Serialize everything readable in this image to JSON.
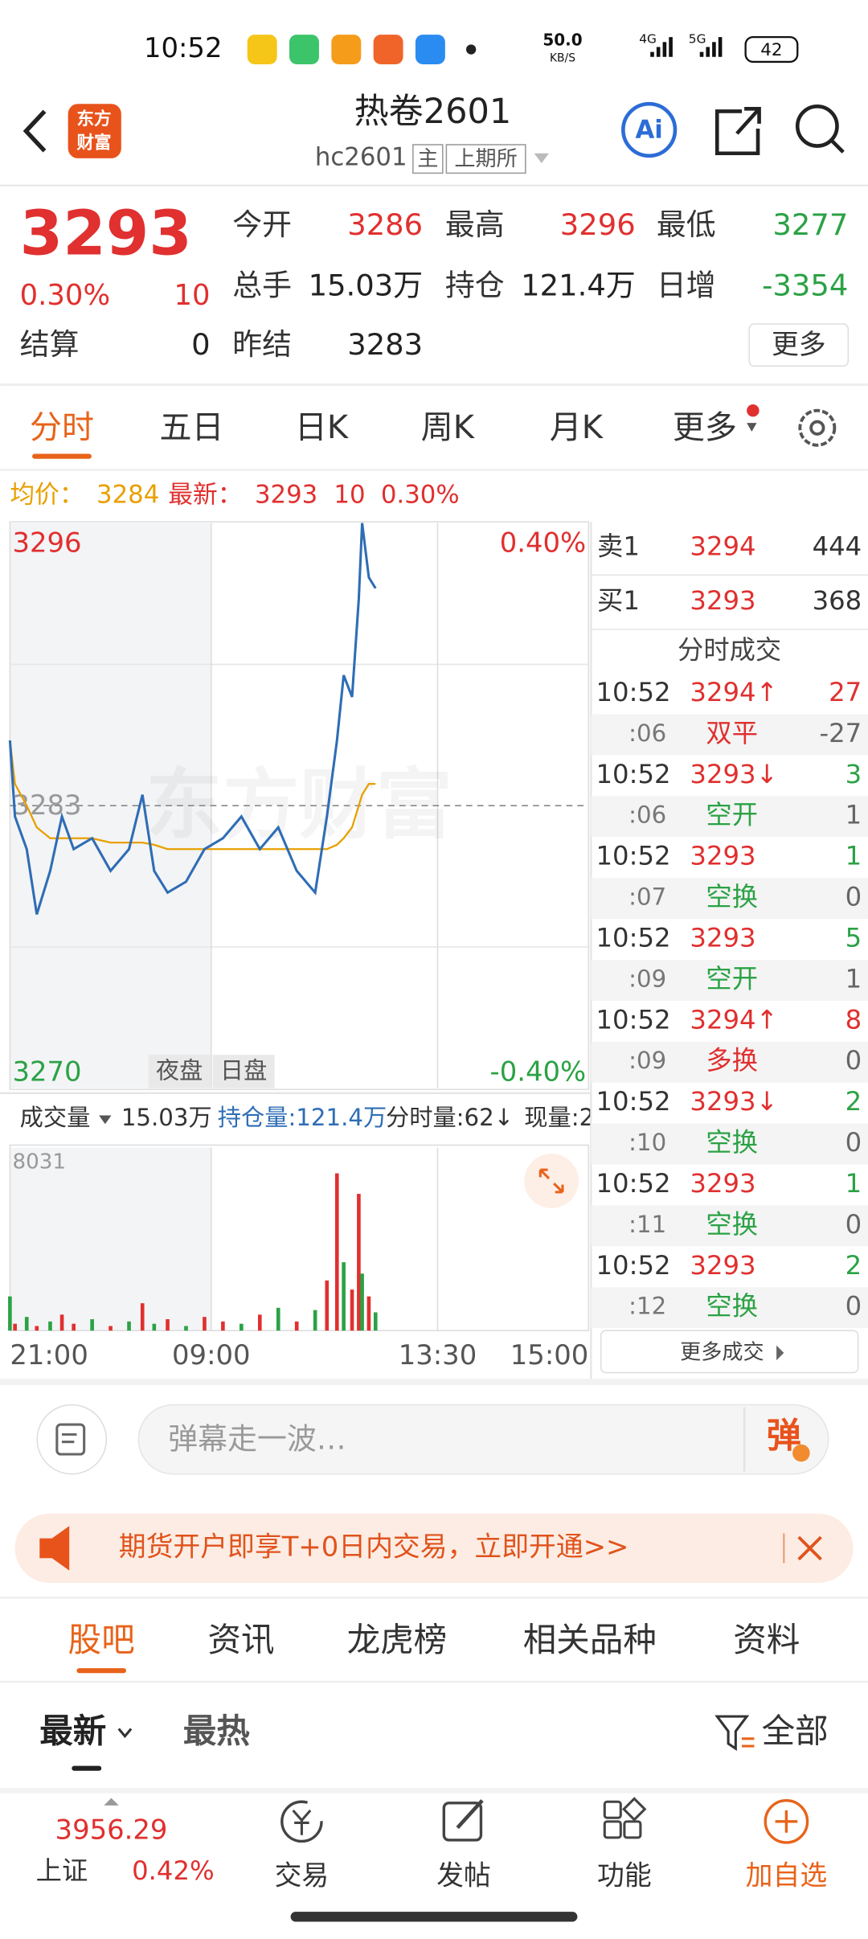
{
  "status_bar": {
    "time": "10:52",
    "net_speed": "50.0",
    "net_unit": "KB/S",
    "signal_a": "4G",
    "signal_b": "5G",
    "battery": "42"
  },
  "header": {
    "logo": [
      "东方",
      "财富"
    ],
    "title": "热卷2601",
    "code": "hc2601",
    "main_tag": "主",
    "exchange": "上期所",
    "ai": "Ai"
  },
  "quote": {
    "price": "3293",
    "change_pct": "0.30%",
    "change": "10",
    "color": "#e0302f",
    "fields": [
      {
        "label": "今开",
        "value": "3286",
        "color": "#e0302f"
      },
      {
        "label": "最高",
        "value": "3296",
        "color": "#e0302f"
      },
      {
        "label": "最低",
        "value": "3277",
        "color": "#2ba245"
      },
      {
        "label": "总手",
        "value": "15.03万",
        "color": "#222222"
      },
      {
        "label": "持仓",
        "value": "121.4万",
        "color": "#222222"
      },
      {
        "label": "日增",
        "value": "-3354",
        "color": "#2ba245"
      },
      {
        "label": "结算",
        "value": "0",
        "color": "#222222"
      },
      {
        "label": "昨结",
        "value": "3283",
        "color": "#222222"
      }
    ],
    "more": "更多"
  },
  "tabs": {
    "items": [
      "分时",
      "五日",
      "日K",
      "周K",
      "月K",
      "更多"
    ],
    "active": 0
  },
  "info_line": {
    "avg_label": "均价：",
    "avg": "3284",
    "latest_label": "最新：",
    "latest": "3293",
    "change": "10",
    "change_pct": "0.30%"
  },
  "watermark": "东方财富",
  "sessions": [
    "夜盘",
    "日盘"
  ],
  "volume_header": {
    "label": "成交量",
    "volume": "15.03万",
    "oi": "持仓量:121.4万",
    "tick_volume": "分时量:62↓",
    "current": "现量:2"
  },
  "chart_data": [
    {
      "type": "line",
      "xlim": [
        0,
        345
      ],
      "xticks": [
        {
          "value": 0,
          "label": "21:00"
        },
        {
          "value": 120,
          "label": "09:00"
        },
        {
          "value": 255,
          "label": "13:30"
        },
        {
          "value": 345,
          "label": "15:00"
        }
      ],
      "ylim": [
        3270,
        3296
      ],
      "yticks": [
        3270,
        3283,
        3296
      ],
      "y2lim": [
        -0.4,
        0.4
      ],
      "y2ticks": [
        {
          "value": -0.4,
          "label": "-0.40%"
        },
        {
          "value": 0.4,
          "label": "0.40%"
        }
      ],
      "x": [
        0,
        3,
        10,
        16,
        24,
        31,
        38,
        49,
        60,
        71,
        79,
        86,
        94,
        105,
        116,
        127,
        138,
        149,
        160,
        171,
        182,
        189,
        195,
        199,
        204,
        208,
        210,
        214,
        218
      ],
      "series": [
        {
          "color": "#2f6db5",
          "values": [
            3286,
            3282.5,
            3281,
            3278,
            3280,
            3282.5,
            3281,
            3281.5,
            3280,
            3281,
            3283.5,
            3280,
            3279,
            3279.5,
            3281,
            3281.5,
            3282.5,
            3281,
            3282,
            3280,
            3279,
            3282.5,
            3286,
            3289,
            3288,
            3292.5,
            3296,
            3293.5,
            3293
          ]
        },
        {
          "color": "#e8a000",
          "values": [
            3286,
            3284,
            3283,
            3282,
            3281.5,
            3281.5,
            3281.5,
            3281.5,
            3281.3,
            3281.3,
            3281.3,
            3281.2,
            3281,
            3281,
            3281,
            3281,
            3281,
            3281,
            3281,
            3281,
            3281,
            3281,
            3281.2,
            3281.5,
            3282,
            3283,
            3283.5,
            3284,
            3284
          ]
        }
      ]
    },
    {
      "type": "bar",
      "xlim": [
        0,
        345
      ],
      "ylim": [
        0,
        8031
      ],
      "yticks": [
        8031
      ],
      "x": [
        0,
        3,
        10,
        16,
        24,
        31,
        38,
        49,
        60,
        71,
        79,
        86,
        94,
        105,
        116,
        127,
        138,
        149,
        160,
        171,
        182,
        189,
        195,
        199,
        204,
        208,
        210,
        214,
        218
      ],
      "values": [
        1500,
        300,
        600,
        200,
        400,
        700,
        300,
        500,
        200,
        400,
        1200,
        300,
        500,
        200,
        600,
        400,
        300,
        700,
        1000,
        400,
        900,
        2200,
        6900,
        3000,
        1800,
        6000,
        2500,
        1500,
        800
      ],
      "bar_colors": [
        "#2ba245",
        "#e0302f",
        "#2ba245",
        "#e0302f",
        "#2ba245",
        "#e0302f",
        "#e0302f",
        "#2ba245",
        "#e0302f",
        "#2ba245",
        "#e0302f",
        "#2ba245",
        "#e0302f",
        "#2ba245",
        "#e0302f",
        "#e0302f",
        "#2ba245",
        "#e0302f",
        "#2ba245",
        "#e0302f",
        "#2ba245",
        "#e0302f",
        "#e0302f",
        "#2ba245",
        "#e0302f",
        "#e0302f",
        "#2ba245",
        "#e0302f",
        "#2ba245"
      ]
    }
  ],
  "order_book": [
    {
      "label": "卖1",
      "price": "3294",
      "volume": "444"
    },
    {
      "label": "买1",
      "price": "3293",
      "volume": "368"
    }
  ],
  "trades_title": "分时成交",
  "trades": [
    {
      "time": "10:52",
      "price": "3294↑",
      "volume": "27",
      "price_color": "#e0302f",
      "volume_color": "#e0302f"
    },
    {
      "time": ":06",
      "price": "双平",
      "volume": "-27",
      "price_color": "#e0302f",
      "volume_color": "#666666"
    },
    {
      "time": "10:52",
      "price": "3293↓",
      "volume": "3",
      "price_color": "#e0302f",
      "volume_color": "#2ba245"
    },
    {
      "time": ":06",
      "price": "空开",
      "volume": "1",
      "price_color": "#2ba245",
      "volume_color": "#666666"
    },
    {
      "time": "10:52",
      "price": "3293",
      "volume": "1",
      "price_color": "#e0302f",
      "volume_color": "#2ba245"
    },
    {
      "time": ":07",
      "price": "空换",
      "volume": "0",
      "price_color": "#2ba245",
      "volume_color": "#666666"
    },
    {
      "time": "10:52",
      "price": "3293",
      "volume": "5",
      "price_color": "#e0302f",
      "volume_color": "#2ba245"
    },
    {
      "time": ":09",
      "price": "空开",
      "volume": "1",
      "price_color": "#2ba245",
      "volume_color": "#666666"
    },
    {
      "time": "10:52",
      "price": "3294↑",
      "volume": "8",
      "price_color": "#e0302f",
      "volume_color": "#e0302f"
    },
    {
      "time": ":09",
      "price": "多换",
      "volume": "0",
      "price_color": "#e0302f",
      "volume_color": "#666666"
    },
    {
      "time": "10:52",
      "price": "3293↓",
      "volume": "2",
      "price_color": "#e0302f",
      "volume_color": "#2ba245"
    },
    {
      "time": ":10",
      "price": "空换",
      "volume": "0",
      "price_color": "#2ba245",
      "volume_color": "#666666"
    },
    {
      "time": "10:52",
      "price": "3293",
      "volume": "1",
      "price_color": "#e0302f",
      "volume_color": "#2ba245"
    },
    {
      "time": ":11",
      "price": "空换",
      "volume": "0",
      "price_color": "#2ba245",
      "volume_color": "#666666"
    },
    {
      "time": "10:52",
      "price": "3293",
      "volume": "2",
      "price_color": "#e0302f",
      "volume_color": "#2ba245"
    },
    {
      "time": ":12",
      "price": "空换",
      "volume": "0",
      "price_color": "#2ba245",
      "volume_color": "#666666"
    }
  ],
  "more_trades": "更多成交",
  "comment": {
    "placeholder": "弹幕走一波…",
    "danmaku": "弹"
  },
  "banner": "期货开户即享T+0日内交易，立即开通>>",
  "section_tabs": {
    "items": [
      "股吧",
      "资讯",
      "龙虎榜",
      "相关品种",
      "资料"
    ],
    "active": 0
  },
  "sort": {
    "latest": "最新",
    "hot": "最热",
    "filter": "全部"
  },
  "bottom_bar": {
    "index_value": "3956.29",
    "index_name": "上证",
    "index_change": "0.42%",
    "items": [
      "交易",
      "发帖",
      "功能",
      "加自选"
    ]
  }
}
